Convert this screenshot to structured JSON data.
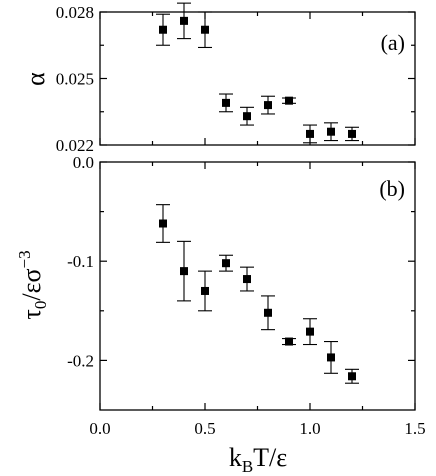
{
  "figure": {
    "shared_xlabel": "k_BT/ε",
    "xlabel_parts": {
      "k": "k",
      "sub": "B",
      "rest": "T/ε"
    }
  },
  "chart_data": [
    {
      "type": "scatter",
      "panel_label": "(a)",
      "ylabel": "α",
      "xlim": [
        0.0,
        1.5
      ],
      "ylim": [
        0.022,
        0.028
      ],
      "ytick_values": [
        0.022,
        0.025,
        0.028
      ],
      "ytick_labels": [
        "0.022",
        "0.025",
        "0.028"
      ],
      "show_x_tick_labels": false,
      "grid": false,
      "x": [
        0.3,
        0.4,
        0.5,
        0.6,
        0.7,
        0.8,
        0.9,
        1.0,
        1.1,
        1.2
      ],
      "y": [
        0.0272,
        0.0276,
        0.0272,
        0.0239,
        0.0233,
        0.0238,
        0.024,
        0.0225,
        0.0226,
        0.0225
      ],
      "yerr": [
        0.0007,
        0.0008,
        0.0008,
        0.0004,
        0.0004,
        0.0004,
        0.00012,
        0.0004,
        0.0004,
        0.0003
      ]
    },
    {
      "type": "scatter",
      "panel_label": "(b)",
      "ylabel": "τ0/εσ−3",
      "ylabel_parts": {
        "tau": "τ",
        "sub": "0",
        "mid": "/εσ",
        "sup": "−3"
      },
      "xlim": [
        0.0,
        1.5
      ],
      "ylim": [
        -0.25,
        0.0
      ],
      "ytick_values": [
        0.0,
        -0.1,
        -0.2
      ],
      "ytick_labels": [
        "0.0",
        "-0.1",
        "-0.2"
      ],
      "xtick_values": [
        0.0,
        0.5,
        1.0,
        1.5
      ],
      "xtick_labels": [
        "0.0",
        "0.5",
        "1.0",
        "1.5"
      ],
      "grid": false,
      "x": [
        0.3,
        0.4,
        0.5,
        0.6,
        0.7,
        0.8,
        0.9,
        1.0,
        1.1,
        1.2
      ],
      "y": [
        -0.062,
        -0.11,
        -0.13,
        -0.102,
        -0.118,
        -0.152,
        -0.181,
        -0.171,
        -0.197,
        -0.216
      ],
      "yerr": [
        0.019,
        0.03,
        0.02,
        0.008,
        0.012,
        0.017,
        0.003,
        0.013,
        0.016,
        0.007
      ]
    }
  ]
}
